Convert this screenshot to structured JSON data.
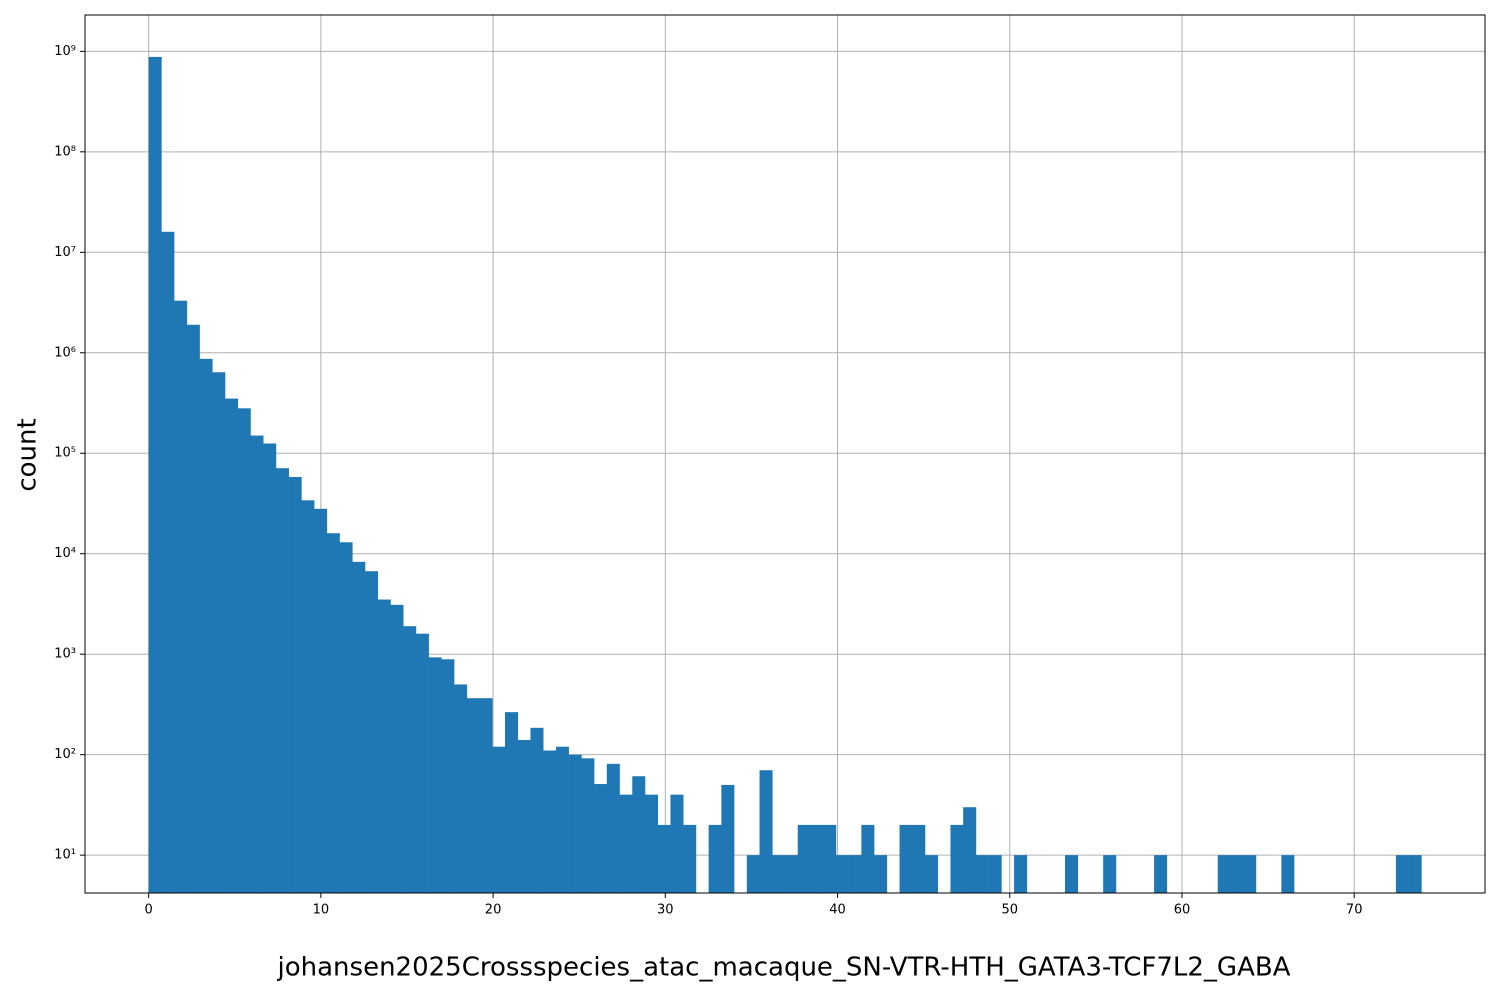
{
  "chart_data": {
    "type": "histogram",
    "xlabel": "johansen2025Crossspecies_atac_macaque_SN-VTR-HTH_GATA3-TCF7L2_GABA",
    "ylabel": "count",
    "color": "#1f77b4",
    "grid": true,
    "yscale": "log",
    "bins": [
      0,
      0.739,
      1.478,
      2.217,
      2.956,
      3.695,
      4.434,
      5.173,
      5.912,
      6.651,
      7.39,
      8.129,
      8.868,
      9.607,
      10.346,
      11.085,
      11.824,
      12.563,
      13.302,
      14.041,
      14.78,
      15.519,
      16.258,
      16.997,
      17.736,
      18.475,
      19.214,
      19.953,
      20.692,
      21.431,
      22.17,
      22.909,
      23.648,
      24.387,
      25.126,
      25.865,
      26.604,
      27.343,
      28.082,
      28.821,
      29.56,
      30.299,
      31.038,
      31.777,
      32.516,
      33.255,
      33.994,
      34.733,
      35.472,
      36.211,
      36.95,
      37.689,
      38.428,
      39.167,
      39.906,
      40.645,
      41.384,
      42.123,
      42.862,
      43.601,
      44.34,
      45.079,
      45.818,
      46.557,
      47.296,
      48.035,
      48.774,
      49.513,
      50.252,
      50.991,
      51.73,
      52.469,
      53.208,
      53.947,
      54.686,
      55.425,
      56.164,
      56.903,
      57.642,
      58.381,
      59.12,
      59.859,
      60.598,
      61.337,
      62.076,
      62.815,
      63.554,
      64.293,
      65.032,
      65.771,
      66.51,
      67.249,
      67.988,
      68.727,
      69.466,
      70.205,
      70.944,
      71.683,
      72.422,
      73.161,
      73.9
    ],
    "values": [
      880000000,
      16000000,
      3300000,
      1900000,
      870000,
      640000,
      350000,
      280000,
      150000,
      125000,
      71000,
      58000,
      34000,
      28000,
      16000,
      13000,
      8300,
      6700,
      3500,
      3100,
      1900,
      1600,
      930,
      890,
      500,
      365,
      365,
      120,
      265,
      140,
      185,
      110,
      120,
      100,
      92,
      51,
      81,
      40,
      61,
      40,
      20,
      40,
      20,
      0,
      20,
      50,
      0,
      10,
      70,
      10,
      10,
      20,
      20,
      20,
      10,
      10,
      20,
      10,
      0,
      20,
      20,
      10,
      0,
      20,
      30,
      10,
      10,
      0,
      10,
      0,
      0,
      0,
      10,
      0,
      0,
      10,
      0,
      0,
      0,
      10,
      0,
      0,
      0,
      0,
      10,
      10,
      10,
      0,
      0,
      10,
      0,
      0,
      0,
      0,
      0,
      0,
      0,
      0,
      10,
      10
    ],
    "xlim": [
      -3.695,
      77.595
    ],
    "xticks": [
      0,
      10,
      20,
      30,
      40,
      50,
      60,
      70
    ],
    "ylim": [
      4.2,
      2300000000
    ],
    "yticks": [
      {
        "value": 10,
        "label": "10¹"
      },
      {
        "value": 100,
        "label": "10²"
      },
      {
        "value": 1000,
        "label": "10³"
      },
      {
        "value": 10000,
        "label": "10⁴"
      },
      {
        "value": 100000,
        "label": "10⁵"
      },
      {
        "value": 1000000,
        "label": "10⁶"
      },
      {
        "value": 10000000,
        "label": "10⁷"
      },
      {
        "value": 100000000,
        "label": "10⁸"
      },
      {
        "value": 1000000000,
        "label": "10⁹"
      }
    ]
  }
}
